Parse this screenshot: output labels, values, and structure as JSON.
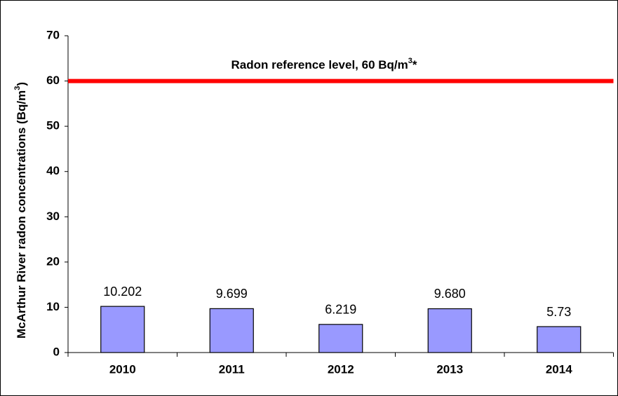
{
  "chart_data": {
    "type": "bar",
    "categories": [
      "2010",
      "2011",
      "2012",
      "2013",
      "2014"
    ],
    "values": [
      10.202,
      9.699,
      6.219,
      9.68,
      5.73
    ],
    "value_labels": [
      "10.202",
      "9.699",
      "6.219",
      "9.680",
      "5.73"
    ],
    "color": "#9999ff",
    "ylim": [
      0,
      70
    ],
    "yticks": [
      0,
      10,
      20,
      30,
      40,
      50,
      60,
      70
    ],
    "y_label": {
      "text": "McArthur River radon concentrations (Bq/m",
      "superscript": "3",
      "suffix": ")"
    },
    "reference_line": {
      "value": 60,
      "color": "#ff0000",
      "label": {
        "text": "Radon reference level, 60 Bq/m",
        "superscript": "3",
        "suffix": "*"
      }
    }
  }
}
